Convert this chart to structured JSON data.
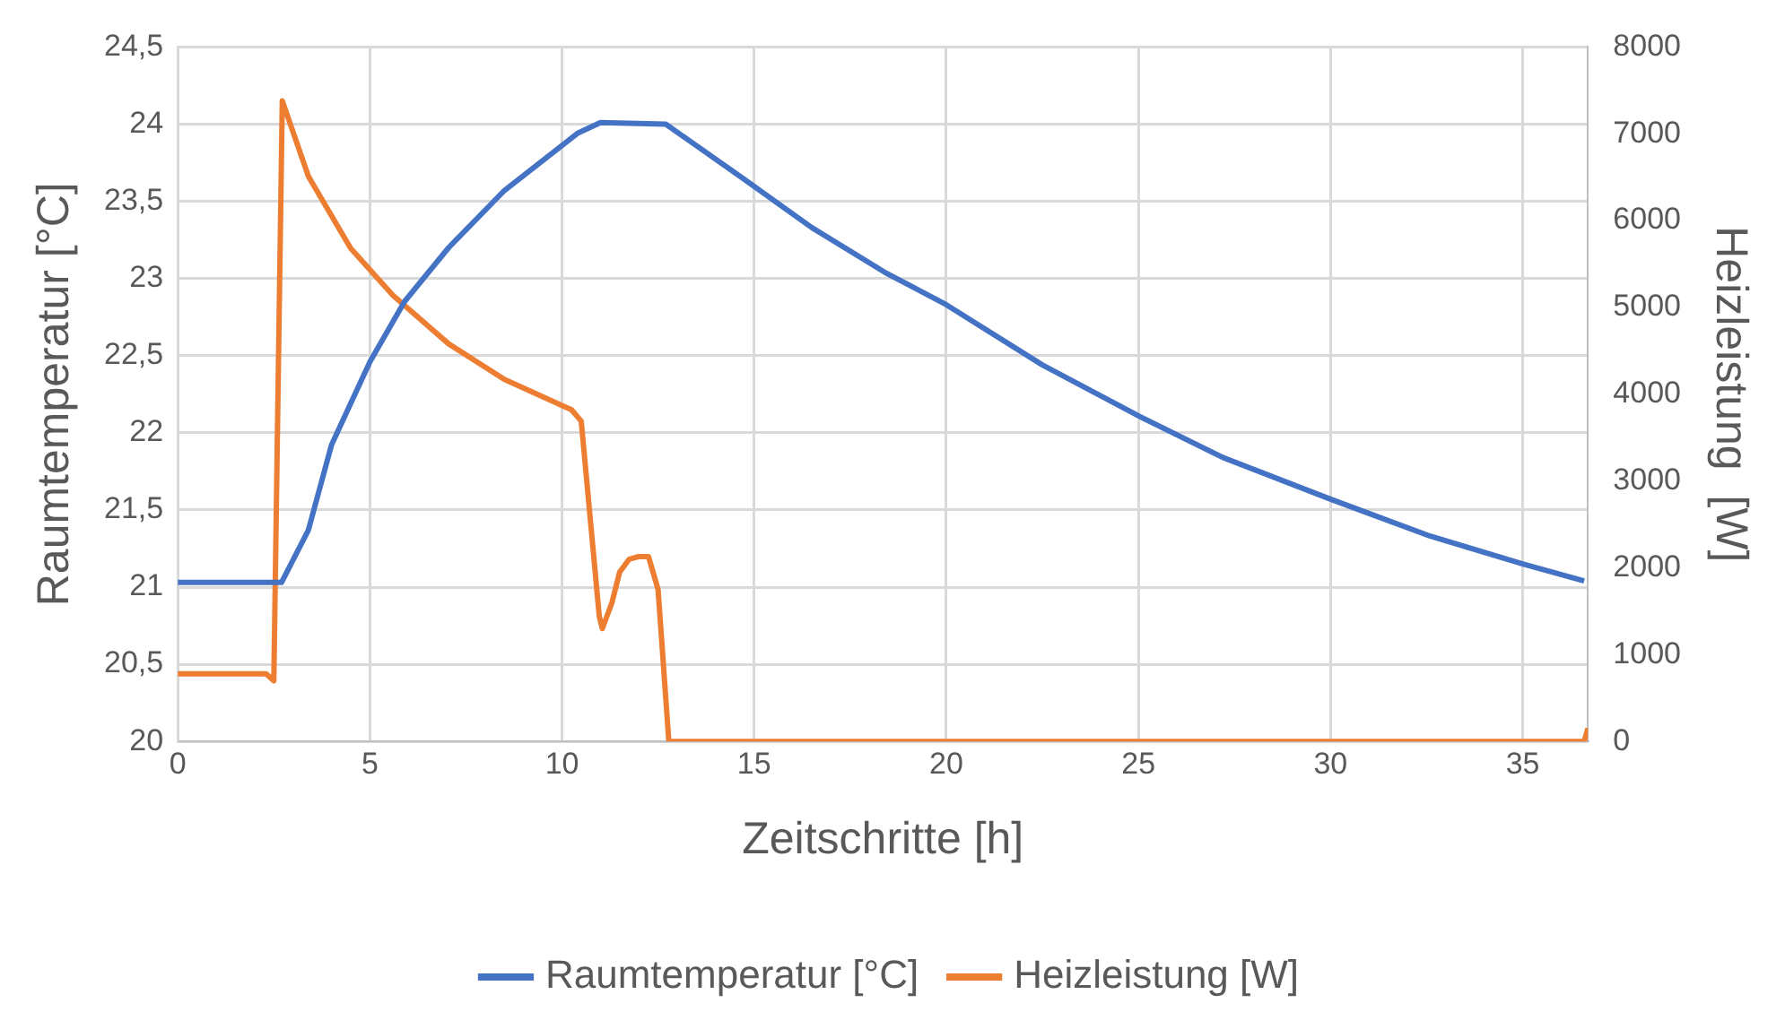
{
  "chart_data": {
    "type": "line",
    "xlabel": "Zeitschritte [h]",
    "ylabel": "Raumtemperatur [°C]",
    "y2label": "Heizleistung  [W]",
    "xlim": [
      0,
      36.7
    ],
    "xticks": [
      0,
      5,
      10,
      15,
      20,
      25,
      30,
      35
    ],
    "ylim": [
      20,
      24.5
    ],
    "yticks": [
      20,
      {
        "value": 20.5,
        "label": "20,5"
      },
      21,
      {
        "value": 21.5,
        "label": "21,5"
      },
      22,
      {
        "value": 22.5,
        "label": "22,5"
      },
      23,
      {
        "value": 23.5,
        "label": "23,5"
      },
      24,
      {
        "value": 24.5,
        "label": "24,5"
      }
    ],
    "y2lim": [
      0,
      8000
    ],
    "y2ticks": [
      0,
      1000,
      2000,
      3000,
      4000,
      5000,
      6000,
      7000,
      8000
    ],
    "grid": true,
    "legend": "bottom",
    "marker": "none",
    "line_style": "solid",
    "series": [
      {
        "name": "Raumtemperatur [°C]",
        "color": "#4472c4",
        "x": [
          0,
          2.7,
          3.4,
          4.0,
          5.0,
          5.9,
          7.05,
          8.5,
          10.4,
          11.0,
          12.7,
          14.7,
          16.5,
          18.4,
          20,
          22.5,
          25,
          27.2,
          30,
          32.6,
          35,
          36.6
        ],
        "values": [
          21.03,
          21.03,
          21.37,
          21.92,
          22.46,
          22.85,
          23.2,
          23.57,
          23.94,
          24.01,
          24.0,
          23.65,
          23.33,
          23.04,
          22.83,
          22.44,
          22.11,
          21.84,
          21.57,
          21.33,
          21.15,
          21.04
        ]
      },
      {
        "name": "Heizleistung [W]",
        "color": "#ed7d31",
        "axis": "y2",
        "x": [
          0,
          2.3,
          2.5,
          2.72,
          3.4,
          4.5,
          5.6,
          7.05,
          8.5,
          10.25,
          10.5,
          10.97,
          11.05,
          11.3,
          11.5,
          11.75,
          12.0,
          12.25,
          12.5,
          12.78,
          36.6,
          36.7
        ],
        "values": [
          780,
          780,
          700,
          7380,
          6510,
          5680,
          5140,
          4580,
          4170,
          3820,
          3690,
          1440,
          1300,
          1600,
          1950,
          2100,
          2130,
          2130,
          1750,
          0,
          0,
          150
        ]
      }
    ]
  }
}
